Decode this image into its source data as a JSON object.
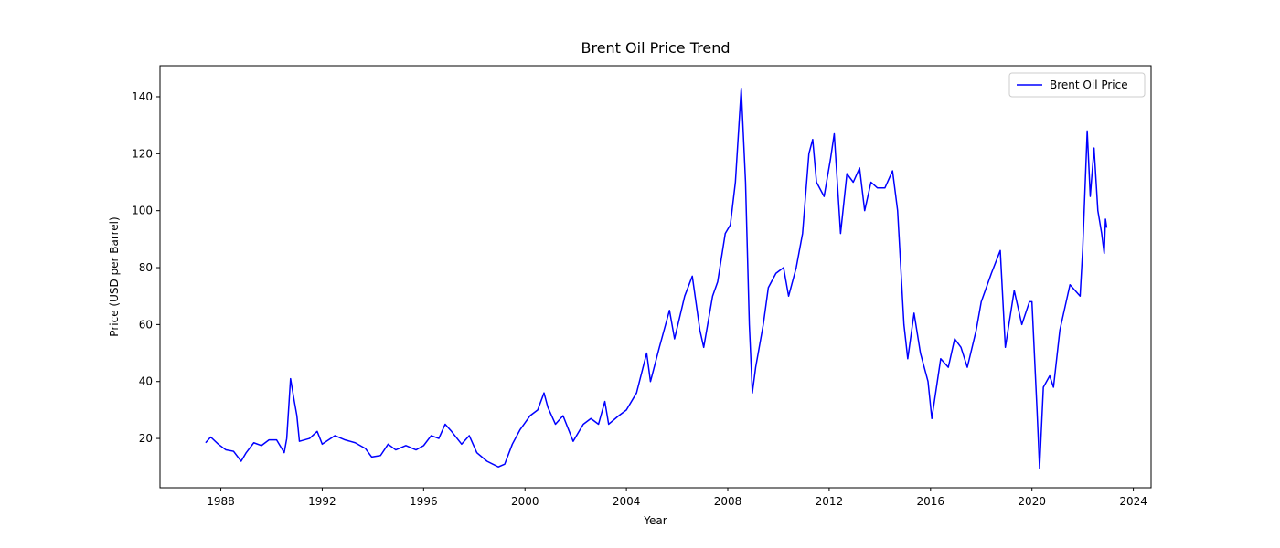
{
  "chart_data": {
    "type": "line",
    "title": "Brent Oil Price Trend",
    "x_label": "Year",
    "y_label": "Price (USD per Barrel)",
    "x": [
      1987.4,
      1987.6,
      1987.9,
      1988.2,
      1988.5,
      1988.8,
      1989.0,
      1989.3,
      1989.6,
      1989.9,
      1990.2,
      1990.5,
      1990.6,
      1990.75,
      1990.9,
      1991.0,
      1991.1,
      1991.5,
      1991.8,
      1992.0,
      1992.5,
      1992.9,
      1993.3,
      1993.7,
      1993.95,
      1994.3,
      1994.6,
      1994.9,
      1995.3,
      1995.7,
      1996.0,
      1996.3,
      1996.6,
      1996.85,
      1997.1,
      1997.5,
      1997.8,
      1998.1,
      1998.5,
      1998.95,
      1999.2,
      1999.5,
      1999.8,
      2000.2,
      2000.5,
      2000.75,
      2000.9,
      2001.2,
      2001.5,
      2001.9,
      2002.3,
      2002.6,
      2002.9,
      2003.15,
      2003.3,
      2003.7,
      2004.0,
      2004.4,
      2004.8,
      2004.95,
      2005.3,
      2005.7,
      2005.9,
      2006.3,
      2006.6,
      2006.9,
      2007.05,
      2007.4,
      2007.6,
      2007.9,
      2008.1,
      2008.3,
      2008.53,
      2008.7,
      2008.85,
      2008.97,
      2009.1,
      2009.4,
      2009.6,
      2009.9,
      2010.2,
      2010.4,
      2010.7,
      2010.95,
      2011.2,
      2011.35,
      2011.5,
      2011.8,
      2012.05,
      2012.2,
      2012.45,
      2012.7,
      2012.95,
      2013.2,
      2013.4,
      2013.65,
      2013.9,
      2014.2,
      2014.5,
      2014.7,
      2014.95,
      2015.1,
      2015.35,
      2015.6,
      2015.9,
      2016.05,
      2016.4,
      2016.7,
      2016.95,
      2017.2,
      2017.45,
      2017.8,
      2018.0,
      2018.4,
      2018.75,
      2018.95,
      2019.3,
      2019.6,
      2019.9,
      2020.0,
      2020.2,
      2020.3,
      2020.45,
      2020.7,
      2020.85,
      2021.1,
      2021.5,
      2021.9,
      2022.0,
      2022.18,
      2022.3,
      2022.45,
      2022.6,
      2022.75,
      2022.85,
      2022.9,
      2022.95
    ],
    "series": [
      {
        "name": "Brent Oil Price",
        "color": "#0000ff",
        "values": [
          18.5,
          20.5,
          18,
          16,
          15.5,
          12,
          15,
          18.5,
          17.5,
          19.5,
          19.5,
          15,
          20,
          41,
          33,
          28,
          19,
          20,
          22.5,
          18,
          21,
          19.5,
          18.5,
          16.5,
          13.5,
          14,
          18,
          16,
          17.5,
          16,
          17.5,
          21,
          20,
          25,
          22.5,
          18,
          21,
          15,
          12,
          10,
          11,
          18,
          23,
          28,
          30,
          36,
          31,
          25,
          28,
          19,
          25,
          27,
          25,
          33,
          25,
          28,
          30,
          36,
          50,
          40,
          52,
          65,
          55,
          70,
          77,
          58,
          52,
          70,
          75,
          92,
          95,
          110,
          143,
          110,
          60,
          36,
          45,
          60,
          73,
          78,
          80,
          70,
          80,
          92,
          120,
          125,
          110,
          105,
          118,
          127,
          92,
          113,
          110,
          115,
          100,
          110,
          108,
          108,
          114,
          100,
          60,
          48,
          64,
          50,
          40,
          27,
          48,
          45,
          55,
          52,
          45,
          58,
          68,
          78,
          86,
          52,
          72,
          60,
          68,
          68,
          30,
          9.5,
          38,
          42,
          38,
          58,
          74,
          70,
          86,
          128,
          105,
          122,
          100,
          92,
          85,
          97,
          94
        ]
      }
    ],
    "xlim": [
      1985.6,
      2024.7
    ],
    "xticks": [
      1988,
      1992,
      1996,
      2000,
      2004,
      2008,
      2012,
      2016,
      2020,
      2024
    ],
    "ylim": [
      2.7,
      150.9
    ],
    "yticks": [
      20,
      40,
      60,
      80,
      100,
      120,
      140
    ],
    "legend": "upper right"
  }
}
